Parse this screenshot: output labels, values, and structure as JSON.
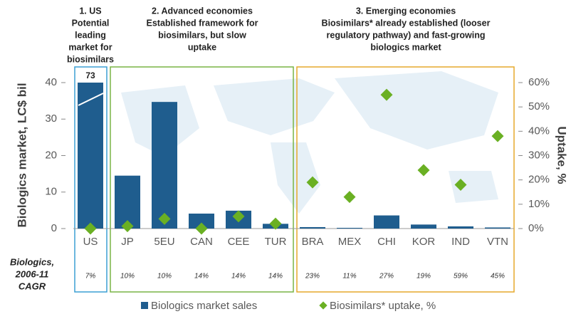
{
  "chart_data": {
    "type": "bar",
    "categories": [
      "US",
      "JP",
      "5EU",
      "CAN",
      "CEE",
      "TUR",
      "BRA",
      "MEX",
      "CHI",
      "KOR",
      "IND",
      "VTN"
    ],
    "series": [
      {
        "name": "Biologics market sales",
        "color": "#1f5d8e",
        "type": "bar",
        "values": [
          73,
          14.5,
          34.7,
          4.1,
          4.9,
          1.3,
          0.4,
          0.2,
          3.6,
          1.1,
          0.6,
          0.3
        ],
        "value_labels": [
          "73",
          null,
          null,
          null,
          null,
          null,
          null,
          null,
          null,
          null,
          null,
          null
        ]
      },
      {
        "name": "Biosimilars* uptake, %",
        "color": "#6ab023",
        "type": "scatter",
        "axis": "y2",
        "values": [
          0,
          1,
          4,
          0,
          5,
          2,
          19,
          13,
          55,
          24,
          18,
          38
        ]
      }
    ],
    "ylabel": "Biologics market, LC$ bil",
    "y2label": "Uptake, %",
    "ylim": [
      0,
      40
    ],
    "yticks": [
      0,
      10,
      20,
      30,
      40
    ],
    "y2lim": [
      0,
      60
    ],
    "y2ticks": [
      {
        "value": 0,
        "label": "0%"
      },
      {
        "value": 10,
        "label": "10%"
      },
      {
        "value": 20,
        "label": "20%"
      },
      {
        "value": 30,
        "label": "30%"
      },
      {
        "value": 40,
        "label": "40%"
      },
      {
        "value": 50,
        "label": "50%"
      },
      {
        "value": 60,
        "label": "60%"
      }
    ],
    "cagr_label": [
      "Biologics,",
      "2006-11",
      "CAGR"
    ],
    "cagr": [
      "7%",
      "10%",
      "10%",
      "14%",
      "14%",
      "14%",
      "23%",
      "11%",
      "27%",
      "19%",
      "59%",
      "45%"
    ],
    "groups": [
      {
        "lines": [
          "1. US",
          "Potential",
          "leading",
          "market for",
          "biosimilars"
        ],
        "color": "#3b9fd4"
      },
      {
        "lines": [
          "2. Advanced economies",
          "Established framework for",
          "biosimilars, but slow",
          "uptake"
        ],
        "color": "#78b445"
      },
      {
        "lines": [
          "3. Emerging economies",
          "Biosimilars* already established (looser",
          "regulatory pathway) and fast-growing",
          "biologics market"
        ],
        "color": "#e6a82c"
      }
    ],
    "legend": "bottom"
  }
}
